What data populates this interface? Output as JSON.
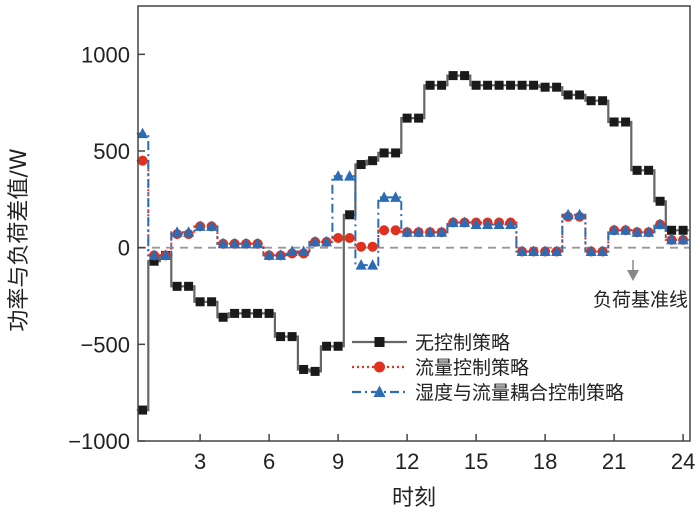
{
  "chart_data": {
    "type": "line",
    "step": true,
    "xlabel": "时刻",
    "ylabel": "功率与负荷差值/W",
    "xlim": [
      0.3,
      24.3
    ],
    "ylim": [
      -1000,
      1250
    ],
    "xticks": [
      3,
      6,
      9,
      12,
      15,
      18,
      21,
      24
    ],
    "yticks": [
      -1000,
      -500,
      0,
      500,
      1000
    ],
    "x": [
      0.5,
      1,
      1.5,
      2,
      2.5,
      3,
      3.5,
      4,
      4.5,
      5,
      5.5,
      6,
      6.5,
      7,
      7.5,
      8,
      8.5,
      9,
      9.5,
      10,
      10.5,
      11,
      11.5,
      12,
      12.5,
      13,
      13.5,
      14,
      14.5,
      15,
      15.5,
      16,
      16.5,
      17,
      17.5,
      18,
      18.5,
      19,
      19.5,
      20,
      20.5,
      21,
      21.5,
      22,
      22.5,
      23,
      23.5,
      24
    ],
    "series": [
      {
        "name": "无控制策略",
        "color": "#666666",
        "dash": "solid",
        "marker": "square",
        "marker_color": "#1a1a1a",
        "values": [
          -840,
          -70,
          -40,
          -200,
          -200,
          -280,
          -280,
          -360,
          -340,
          -340,
          -340,
          -340,
          -460,
          -460,
          -630,
          -640,
          -510,
          -510,
          170,
          430,
          450,
          490,
          490,
          670,
          670,
          840,
          840,
          890,
          890,
          840,
          840,
          840,
          840,
          840,
          840,
          830,
          830,
          790,
          790,
          760,
          760,
          650,
          650,
          400,
          400,
          240,
          90,
          90
        ]
      },
      {
        "name": "流量控制策略",
        "color": "#e0301e",
        "dash": "dotted",
        "marker": "circle",
        "marker_color": "#e0301e",
        "values": [
          450,
          -40,
          -40,
          70,
          70,
          110,
          110,
          20,
          20,
          20,
          20,
          -40,
          -40,
          -30,
          -30,
          30,
          30,
          50,
          50,
          5,
          5,
          90,
          90,
          80,
          80,
          80,
          80,
          130,
          130,
          130,
          130,
          130,
          130,
          -20,
          -20,
          -20,
          -20,
          160,
          160,
          -20,
          -20,
          90,
          90,
          80,
          80,
          120,
          40,
          40
        ]
      },
      {
        "name": "湿度与流量耦合控制策略",
        "color": "#2b6cb4",
        "dash": "dashdot",
        "marker": "triangle",
        "marker_color": "#2b6cb4",
        "values": [
          590,
          -40,
          -40,
          80,
          80,
          110,
          110,
          20,
          20,
          20,
          20,
          -40,
          -40,
          -20,
          -20,
          30,
          30,
          370,
          370,
          -90,
          -90,
          260,
          260,
          80,
          80,
          80,
          80,
          130,
          130,
          120,
          120,
          120,
          120,
          -20,
          -20,
          -20,
          -20,
          170,
          170,
          -20,
          -20,
          90,
          90,
          80,
          80,
          120,
          40,
          40
        ]
      }
    ],
    "baseline": {
      "y": 0,
      "color": "#999999",
      "dash": "dashed"
    },
    "annotation": {
      "text": "负荷基准线"
    },
    "legend": {
      "position": "lower-right"
    },
    "grid": false
  }
}
